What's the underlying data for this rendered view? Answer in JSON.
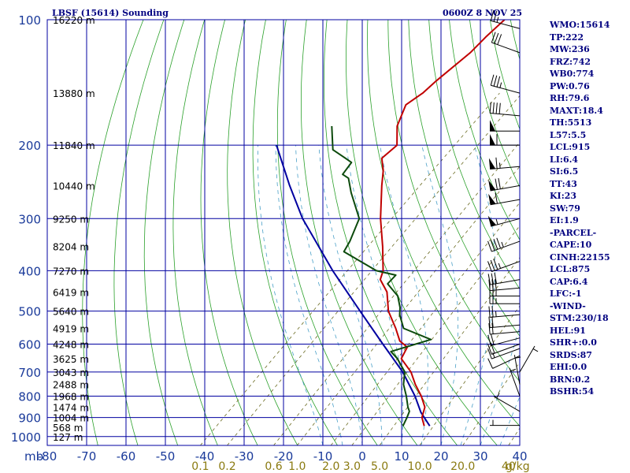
{
  "chart_data": {
    "type": "line",
    "title": "LBSF (15614) Sounding",
    "datetime": "0600Z  8 NOV 25",
    "xlabel": "",
    "ylabel": "mb",
    "pressure_ticks": [
      100,
      200,
      300,
      400,
      500,
      600,
      700,
      800,
      900,
      1000
    ],
    "pressure_range": [
      100,
      1050
    ],
    "temperature_range_at_bottom": [
      -80,
      40
    ],
    "temperature_ticks": [
      -80,
      -70,
      -60,
      -50,
      -40,
      -30,
      -20,
      -10,
      0,
      10,
      20,
      30,
      40
    ],
    "temperature_tick_labels": [
      "-80",
      "-70",
      "-60",
      "-50",
      "-40",
      "-30",
      "-20",
      "-10",
      "0",
      "10",
      "20",
      "30",
      "40"
    ],
    "skew_degC_per_log_decade": 110,
    "mixing_ratio_labels": [
      {
        "value": 0.1,
        "text": "0.1"
      },
      {
        "value": 0.2,
        "text": "0.2"
      },
      {
        "value": 0.6,
        "text": "0.6"
      },
      {
        "value": 1.0,
        "text": "1.0"
      },
      {
        "value": 2.0,
        "text": "2.0"
      },
      {
        "value": 3.0,
        "text": "3.0"
      },
      {
        "value": 5.0,
        "text": "5.0"
      },
      {
        "value": 10.0,
        "text": "10.0"
      },
      {
        "value": 20.0,
        "text": "20.0"
      },
      {
        "value": 40.0,
        "text": "40"
      }
    ],
    "mixing_ratio_unit": "g/kg",
    "height_labels": [
      {
        "p": 100,
        "text": "16220 m"
      },
      {
        "p": 150,
        "text": "13880 m"
      },
      {
        "p": 200,
        "text": "11840 m"
      },
      {
        "p": 250,
        "text": "10440 m"
      },
      {
        "p": 300,
        "text": "9250 m"
      },
      {
        "p": 350,
        "text": "8204 m"
      },
      {
        "p": 400,
        "text": "7270 m"
      },
      {
        "p": 450,
        "text": "6419 m"
      },
      {
        "p": 500,
        "text": "5640 m"
      },
      {
        "p": 550,
        "text": "4919 m"
      },
      {
        "p": 600,
        "text": "4248 m"
      },
      {
        "p": 650,
        "text": "3625 m"
      },
      {
        "p": 700,
        "text": "3043 m"
      },
      {
        "p": 750,
        "text": "2488 m"
      },
      {
        "p": 800,
        "text": "1968 m"
      },
      {
        "p": 850,
        "text": "1474 m"
      },
      {
        "p": 900,
        "text": "1004 m"
      },
      {
        "p": 950,
        "text": "568 m"
      },
      {
        "p": 1000,
        "text": "127 m"
      }
    ],
    "series": [
      {
        "name": "Temperature",
        "color": "#c00000",
        "points": [
          {
            "p": 943,
            "t": 10.6
          },
          {
            "p": 900,
            "t": 7.8
          },
          {
            "p": 850,
            "t": 5.8
          },
          {
            "p": 800,
            "t": 2.0
          },
          {
            "p": 750,
            "t": -2.6
          },
          {
            "p": 700,
            "t": -7.0
          },
          {
            "p": 650,
            "t": -13.0
          },
          {
            "p": 610,
            "t": -14.5
          },
          {
            "p": 590,
            "t": -18.0
          },
          {
            "p": 550,
            "t": -22.4
          },
          {
            "p": 500,
            "t": -28.8
          },
          {
            "p": 450,
            "t": -34.2
          },
          {
            "p": 420,
            "t": -39.2
          },
          {
            "p": 400,
            "t": -40.8
          },
          {
            "p": 350,
            "t": -47.3
          },
          {
            "p": 300,
            "t": -55.2
          },
          {
            "p": 250,
            "t": -63.6
          },
          {
            "p": 230,
            "t": -67.2
          },
          {
            "p": 215,
            "t": -70.8
          },
          {
            "p": 200,
            "t": -70.4
          },
          {
            "p": 180,
            "t": -75.4
          },
          {
            "p": 160,
            "t": -78.8
          },
          {
            "p": 150,
            "t": -77.6
          },
          {
            "p": 140,
            "t": -77.4
          },
          {
            "p": 120,
            "t": -76.2
          },
          {
            "p": 110,
            "t": -76.4
          },
          {
            "p": 100,
            "t": -76.2
          }
        ]
      },
      {
        "name": "Dewpoint",
        "color": "#0c4a0c",
        "points": [
          {
            "p": 943,
            "t": 5.2
          },
          {
            "p": 900,
            "t": 4.0
          },
          {
            "p": 870,
            "t": 3.0
          },
          {
            "p": 850,
            "t": 1.5
          },
          {
            "p": 800,
            "t": -1.8
          },
          {
            "p": 750,
            "t": -5.6
          },
          {
            "p": 700,
            "t": -8.6
          },
          {
            "p": 650,
            "t": -14.0
          },
          {
            "p": 625,
            "t": -17.5
          },
          {
            "p": 585,
            "t": -10.5
          },
          {
            "p": 550,
            "t": -20.4
          },
          {
            "p": 510,
            "t": -25.0
          },
          {
            "p": 490,
            "t": -26.8
          },
          {
            "p": 460,
            "t": -30.4
          },
          {
            "p": 430,
            "t": -36.2
          },
          {
            "p": 410,
            "t": -36.4
          },
          {
            "p": 400,
            "t": -42.5
          },
          {
            "p": 360,
            "t": -55.8
          },
          {
            "p": 340,
            "t": -57.0
          },
          {
            "p": 300,
            "t": -60.6
          },
          {
            "p": 260,
            "t": -69.5
          },
          {
            "p": 240,
            "t": -74.0
          },
          {
            "p": 235,
            "t": -76.5
          },
          {
            "p": 220,
            "t": -77.4
          },
          {
            "p": 215,
            "t": -80.0
          },
          {
            "p": 205,
            "t": -85.5
          },
          {
            "p": 180,
            "t": -92.0
          }
        ]
      },
      {
        "name": "Parcel",
        "color": "#0000a0",
        "points": [
          {
            "p": 943,
            "t": 12.0
          },
          {
            "p": 875,
            "t": 6.2
          },
          {
            "p": 800,
            "t": 0.4
          },
          {
            "p": 700,
            "t": -9.1
          },
          {
            "p": 600,
            "t": -21.5
          },
          {
            "p": 500,
            "t": -36.0
          },
          {
            "p": 400,
            "t": -53.6
          },
          {
            "p": 300,
            "t": -75.0
          },
          {
            "p": 250,
            "t": -87.0
          },
          {
            "p": 200,
            "t": -101.0
          }
        ]
      }
    ],
    "wind_barbs": [
      {
        "p": 105,
        "dir": 285,
        "spd": 25
      },
      {
        "p": 120,
        "dir": 290,
        "spd": 30
      },
      {
        "p": 150,
        "dir": 285,
        "spd": 35
      },
      {
        "p": 170,
        "dir": 275,
        "spd": 40
      },
      {
        "p": 185,
        "dir": 270,
        "spd": 50
      },
      {
        "p": 200,
        "dir": 270,
        "spd": 60
      },
      {
        "p": 225,
        "dir": 265,
        "spd": 65
      },
      {
        "p": 250,
        "dir": 260,
        "spd": 70
      },
      {
        "p": 270,
        "dir": 260,
        "spd": 60
      },
      {
        "p": 300,
        "dir": 255,
        "spd": 55
      },
      {
        "p": 340,
        "dir": 250,
        "spd": 45
      },
      {
        "p": 380,
        "dir": 250,
        "spd": 35
      },
      {
        "p": 420,
        "dir": 260,
        "spd": 30
      },
      {
        "p": 440,
        "dir": 265,
        "spd": 30
      },
      {
        "p": 460,
        "dir": 270,
        "spd": 25
      },
      {
        "p": 480,
        "dir": 270,
        "spd": 25
      },
      {
        "p": 510,
        "dir": 265,
        "spd": 25
      },
      {
        "p": 540,
        "dir": 265,
        "spd": 20
      },
      {
        "p": 560,
        "dir": 265,
        "spd": 20
      },
      {
        "p": 580,
        "dir": 255,
        "spd": 20
      },
      {
        "p": 600,
        "dir": 250,
        "spd": 20
      },
      {
        "p": 615,
        "dir": 250,
        "spd": 15
      },
      {
        "p": 640,
        "dir": 245,
        "spd": 10
      },
      {
        "p": 700,
        "dir": 30,
        "spd": 5
      },
      {
        "p": 750,
        "dir": 350,
        "spd": 5
      },
      {
        "p": 800,
        "dir": 340,
        "spd": 5
      },
      {
        "p": 870,
        "dir": 300,
        "spd": 5
      },
      {
        "p": 940,
        "dir": 270,
        "spd": 5
      }
    ],
    "indices": [
      "WMO:15614",
      "TP:222",
      "MW:236",
      "FRZ:742",
      "WB0:774",
      "PW:0.76",
      "RH:79.6",
      "MAXT:18.4",
      "TH:5513",
      "L57:5.5",
      "LCL:915",
      "LI:6.4",
      "SI:6.5",
      "TT:43",
      "KI:23",
      "SW:79",
      "EI:1.9",
      "-PARCEL-",
      "CAPE:10",
      "CINH:22155",
      "LCL:875",
      "CAP:6.4",
      "LFC:-1",
      "-WIND-",
      "STM:230/18",
      "HEL:91",
      "SHR+:0.0",
      "SRDS:87",
      "EHI:0.0",
      "BRN:0.2",
      "BSHR:54"
    ]
  }
}
